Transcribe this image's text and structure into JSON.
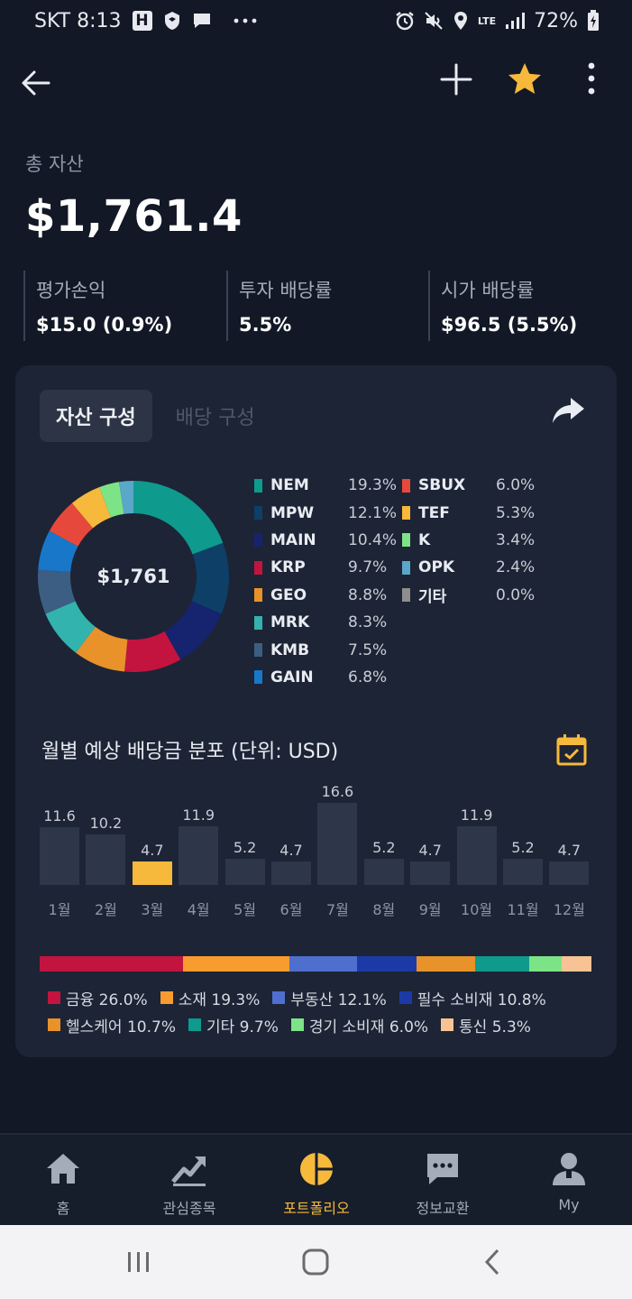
{
  "status_bar": {
    "carrier_time": "SKT 8:13",
    "h_badge": "H",
    "network": "LTE",
    "battery": "72%"
  },
  "summary": {
    "total_label": "총 자산",
    "total_value": "$1,761.4",
    "metrics": [
      {
        "label": "평가손익",
        "value": "$15.0 (0.9%)"
      },
      {
        "label": "투자 배당률",
        "value": "5.5%"
      },
      {
        "label": "시가 배당률",
        "value": "$96.5 (5.5%)"
      }
    ]
  },
  "card": {
    "tab_active": "자산 구성",
    "tab_inactive": "배당 구성",
    "donut_center": "$1,761",
    "holdings": [
      {
        "name": "NEM",
        "pct": "19.3%",
        "value": 19.3,
        "color": "#0f9a8e"
      },
      {
        "name": "MPW",
        "pct": "12.1%",
        "value": 12.1,
        "color": "#0e3f66"
      },
      {
        "name": "MAIN",
        "pct": "10.4%",
        "value": 10.4,
        "color": "#16236e"
      },
      {
        "name": "KRP",
        "pct": "9.7%",
        "value": 9.7,
        "color": "#c2143e"
      },
      {
        "name": "GEO",
        "pct": "8.8%",
        "value": 8.8,
        "color": "#ea922a"
      },
      {
        "name": "MRK",
        "pct": "8.3%",
        "value": 8.3,
        "color": "#33b3ad"
      },
      {
        "name": "KMB",
        "pct": "7.5%",
        "value": 7.5,
        "color": "#3c5e83"
      },
      {
        "name": "GAIN",
        "pct": "6.8%",
        "value": 6.8,
        "color": "#1877c9"
      },
      {
        "name": "SBUX",
        "pct": "6.0%",
        "value": 6.0,
        "color": "#e6493b"
      },
      {
        "name": "TEF",
        "pct": "5.3%",
        "value": 5.3,
        "color": "#f6b93b"
      },
      {
        "name": "K",
        "pct": "3.4%",
        "value": 3.4,
        "color": "#7de387"
      },
      {
        "name": "OPK",
        "pct": "2.4%",
        "value": 2.4,
        "color": "#5aa7c9"
      },
      {
        "name": "기타",
        "pct": "0.0%",
        "value": 0.0,
        "color": "#8e8e8e"
      }
    ],
    "monthly_title": "월별 예상 배당금 분포 (단위: USD)",
    "sector_legend": [
      {
        "label": "금융 26.0%",
        "value": 26.0,
        "color": "#c2143e"
      },
      {
        "label": "소재 19.3%",
        "value": 19.3,
        "color": "#f89c2f"
      },
      {
        "label": "부동산 12.1%",
        "value": 12.1,
        "color": "#4f6fcf"
      },
      {
        "label": "필수 소비재 10.8%",
        "value": 10.8,
        "color": "#1c3aa6"
      },
      {
        "label": "헬스케어 10.7%",
        "value": 10.7,
        "color": "#e8922a"
      },
      {
        "label": "기타 9.7%",
        "value": 9.7,
        "color": "#0f9a8e"
      },
      {
        "label": "경기 소비재 6.0%",
        "value": 6.0,
        "color": "#7de387"
      },
      {
        "label": "통신 5.3%",
        "value": 5.3,
        "color": "#f8c394"
      }
    ]
  },
  "chart_data": {
    "type": "bar",
    "categories": [
      "1월",
      "2월",
      "3월",
      "4월",
      "5월",
      "6월",
      "7월",
      "8월",
      "9월",
      "10월",
      "11월",
      "12월"
    ],
    "values": [
      11.6,
      10.2,
      4.7,
      11.9,
      5.2,
      4.7,
      16.6,
      5.2,
      4.7,
      11.9,
      5.2,
      4.7
    ],
    "value_labels": [
      "11.6",
      "10.2",
      "4.7",
      "11.9",
      "5.2",
      "4.7",
      "16.6",
      "5.2",
      "4.7",
      "11.9",
      "5.2",
      "4.7"
    ],
    "highlight_index": 2,
    "bar_color": "#2e3649",
    "highlight_color": "#f6b93b",
    "ylim": [
      0,
      16.6
    ]
  },
  "bottom_nav": [
    {
      "label": "홈",
      "icon": "home-icon"
    },
    {
      "label": "관심종목",
      "icon": "trending-icon"
    },
    {
      "label": "포트폴리오",
      "icon": "pie-chart-icon",
      "active": true
    },
    {
      "label": "정보교환",
      "icon": "chat-icon"
    },
    {
      "label": "My",
      "icon": "person-icon"
    }
  ],
  "colors": {
    "accent": "#f6b93b",
    "background": "#121826",
    "card": "#1d2435"
  }
}
